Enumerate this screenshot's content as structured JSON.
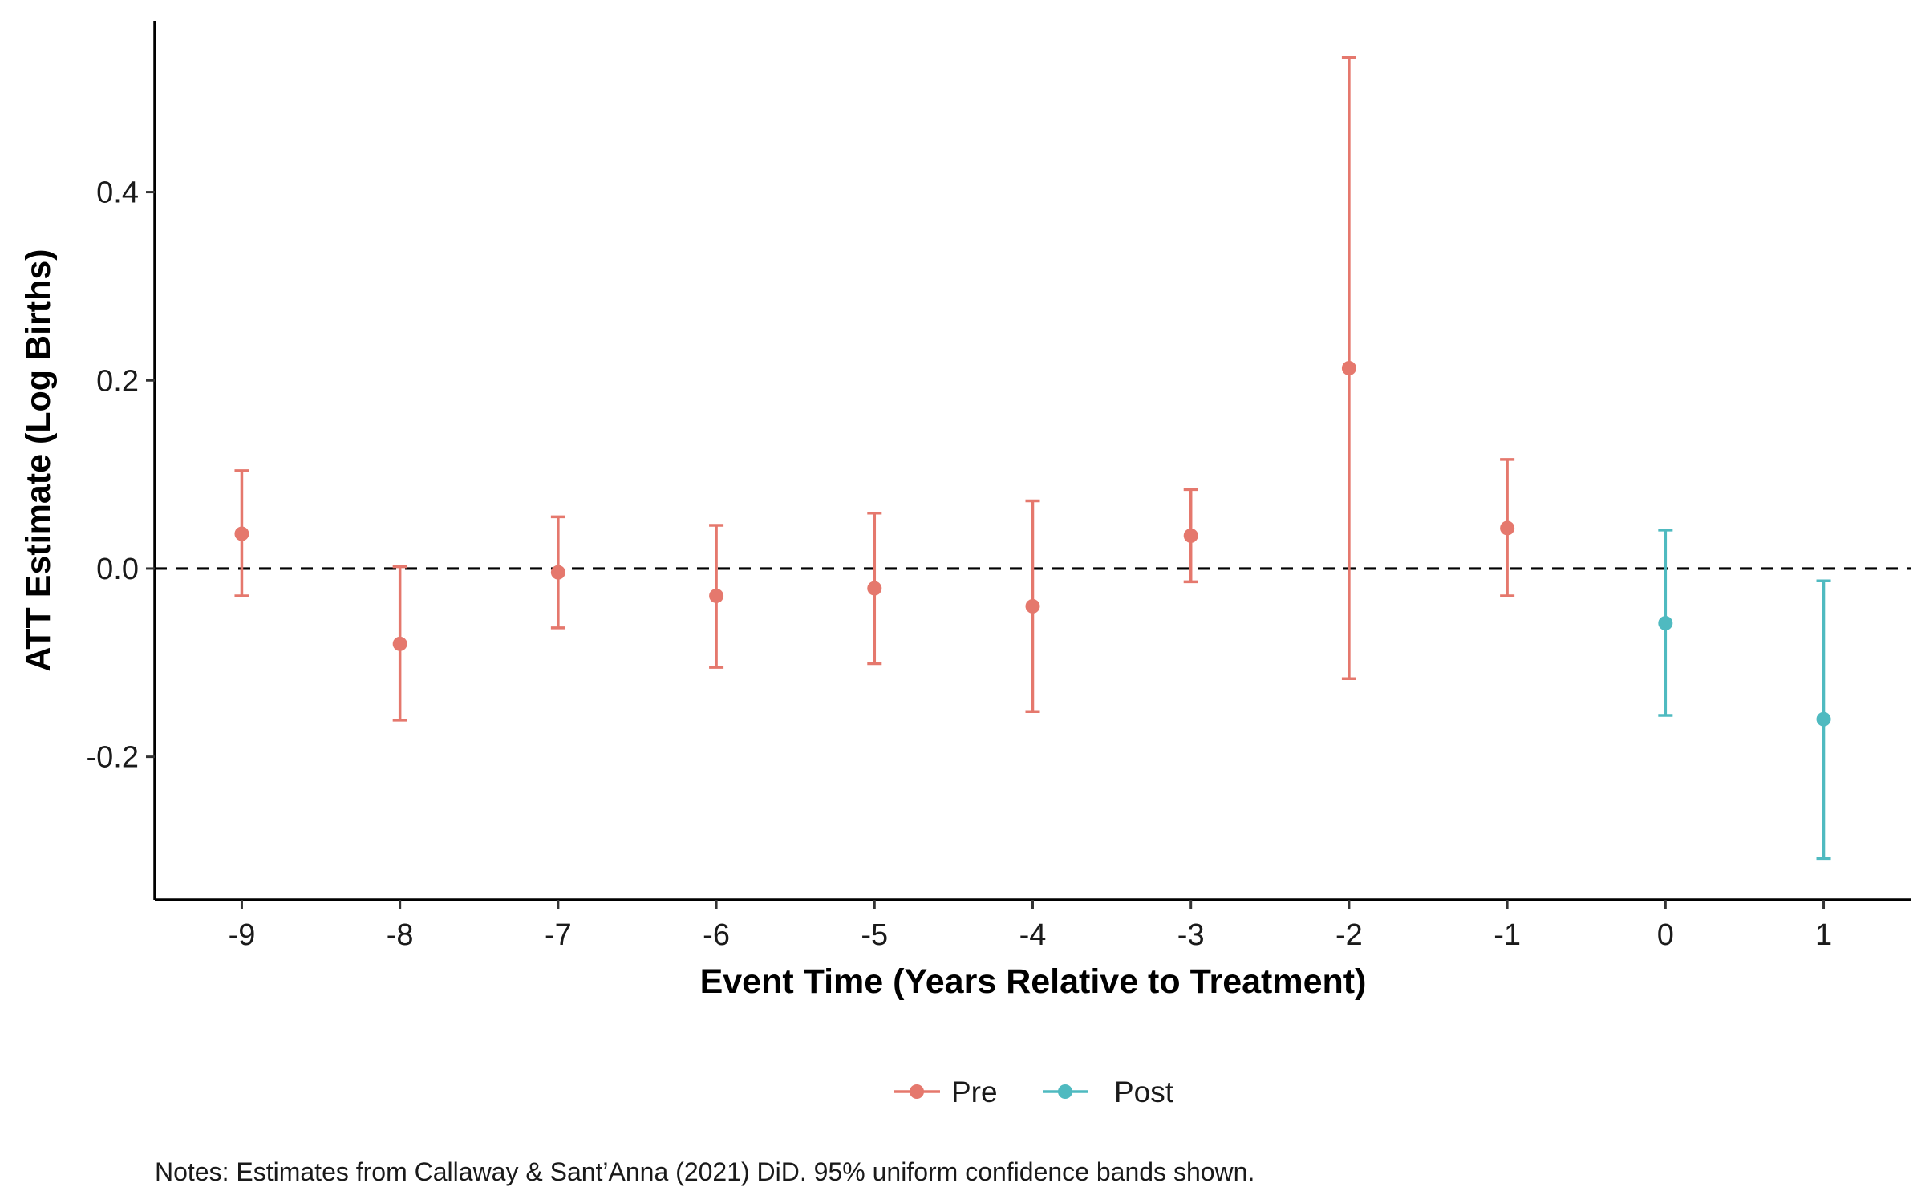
{
  "chart_data": {
    "type": "scatter",
    "x_label": "Event Time (Years Relative to Treatment)",
    "y_label": "ATT Estimate (Log Births)",
    "x_ticks": [
      -9,
      -8,
      -7,
      -6,
      -5,
      -4,
      -3,
      -2,
      -1,
      0,
      1
    ],
    "y_ticks": [
      -0.2,
      0.0,
      0.2,
      0.4
    ],
    "y_tick_labels": [
      "-0.2",
      "0.0",
      "0.2",
      "0.4"
    ],
    "xlim": [
      -9.55,
      1.55
    ],
    "ylim": [
      -0.352,
      0.582
    ],
    "reference_line": {
      "y": 0.0,
      "style": "dashed"
    },
    "series": [
      {
        "name": "Pre",
        "color": "#e5786d",
        "points": [
          {
            "x": -9,
            "y": 0.037,
            "lower": -0.029,
            "upper": 0.104
          },
          {
            "x": -8,
            "y": -0.08,
            "lower": -0.161,
            "upper": 0.002
          },
          {
            "x": -7,
            "y": -0.004,
            "lower": -0.063,
            "upper": 0.055
          },
          {
            "x": -6,
            "y": -0.029,
            "lower": -0.105,
            "upper": 0.046
          },
          {
            "x": -5,
            "y": -0.021,
            "lower": -0.101,
            "upper": 0.059
          },
          {
            "x": -4,
            "y": -0.04,
            "lower": -0.152,
            "upper": 0.072
          },
          {
            "x": -3,
            "y": 0.035,
            "lower": -0.014,
            "upper": 0.084
          },
          {
            "x": -2,
            "y": 0.213,
            "lower": -0.117,
            "upper": 0.543
          },
          {
            "x": -1,
            "y": 0.043,
            "lower": -0.029,
            "upper": 0.116
          }
        ]
      },
      {
        "name": "Post",
        "color": "#4fbac0",
        "points": [
          {
            "x": 0,
            "y": -0.058,
            "lower": -0.156,
            "upper": 0.041
          },
          {
            "x": 1,
            "y": -0.16,
            "lower": -0.308,
            "upper": -0.013
          }
        ]
      }
    ],
    "legend": {
      "position": "bottom",
      "entries": [
        "Pre",
        "Post"
      ]
    },
    "grid": false,
    "note": "Notes: Estimates from Callaway & Sant’Anna (2021) DiD. 95% uniform confidence bands shown."
  }
}
